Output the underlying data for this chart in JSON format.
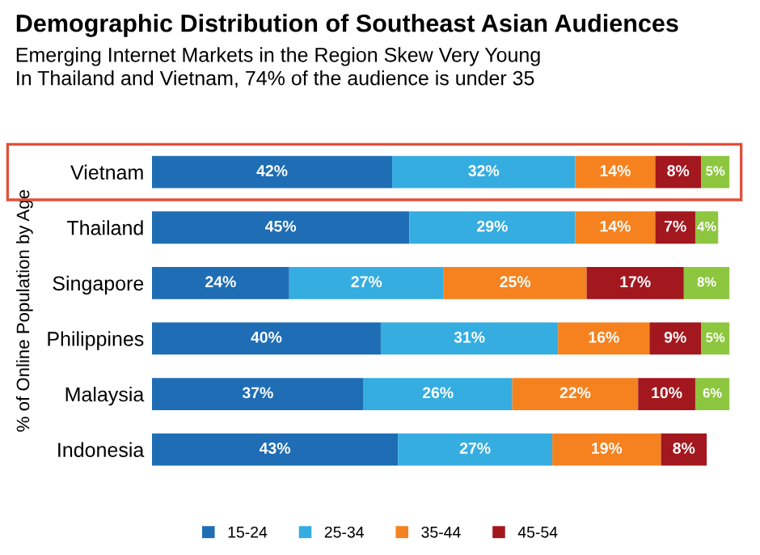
{
  "chart_data": {
    "type": "bar",
    "orientation": "horizontal",
    "stacked": true,
    "title": "Demographic Distribution of Southeast Asian Audiences",
    "subtitle": "Emerging Internet Markets in the Region Skew Very Young\nIn Thailand and Vietnam, 74% of the audience is under 35",
    "ylabel": "% of Online Population by Age",
    "categories": [
      "Vietnam",
      "Thailand",
      "Singapore",
      "Philippines",
      "Malaysia",
      "Indonesia"
    ],
    "series": [
      {
        "name": "15-24",
        "color": "#1f6db5",
        "values": [
          42,
          45,
          24,
          40,
          37,
          43
        ],
        "value_labels": [
          "42%",
          "45%",
          "24%",
          "40%",
          "37%",
          "43%"
        ]
      },
      {
        "name": "25-34",
        "color": "#35ade0",
        "values": [
          32,
          29,
          27,
          31,
          26,
          27
        ],
        "value_labels": [
          "32%",
          "29%",
          "27%",
          "31%",
          "26%",
          "27%"
        ]
      },
      {
        "name": "35-44",
        "color": "#f5821f",
        "values": [
          14,
          14,
          25,
          16,
          22,
          19
        ],
        "value_labels": [
          "14%",
          "14%",
          "25%",
          "16%",
          "22%",
          "19%"
        ]
      },
      {
        "name": "45-54",
        "color": "#a3171f",
        "values": [
          8,
          7,
          17,
          9,
          10,
          8
        ],
        "value_labels": [
          "8%",
          "7%",
          "17%",
          "9%",
          "10%",
          "8%"
        ]
      },
      {
        "color": "#8dc63f",
        "values": [
          5,
          4,
          8,
          5,
          6,
          null
        ],
        "value_labels": [
          "5%",
          "4%",
          "8%",
          "5%",
          "6%",
          null
        ]
      }
    ],
    "tick_labels": "y",
    "grid": false,
    "legend": "bottom"
  }
}
